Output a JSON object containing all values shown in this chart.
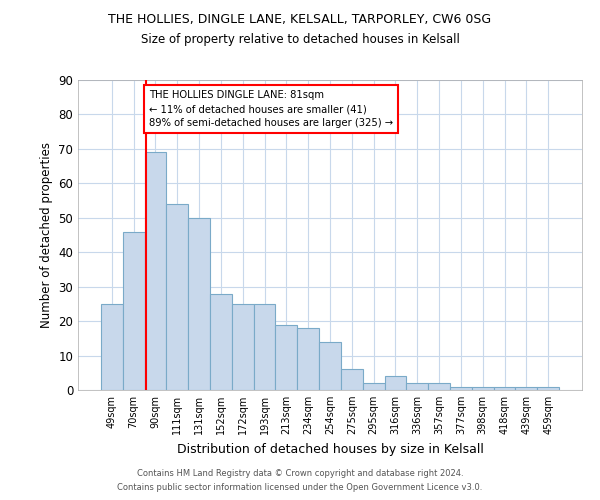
{
  "title1": "THE HOLLIES, DINGLE LANE, KELSALL, TARPORLEY, CW6 0SG",
  "title2": "Size of property relative to detached houses in Kelsall",
  "xlabel": "Distribution of detached houses by size in Kelsall",
  "ylabel": "Number of detached properties",
  "categories": [
    "49sqm",
    "70sqm",
    "90sqm",
    "111sqm",
    "131sqm",
    "152sqm",
    "172sqm",
    "193sqm",
    "213sqm",
    "234sqm",
    "254sqm",
    "275sqm",
    "295sqm",
    "316sqm",
    "336sqm",
    "357sqm",
    "377sqm",
    "398sqm",
    "418sqm",
    "439sqm",
    "459sqm"
  ],
  "values": [
    25,
    46,
    69,
    54,
    50,
    28,
    25,
    25,
    19,
    18,
    14,
    6,
    2,
    4,
    2,
    2,
    1,
    1,
    1,
    1,
    1
  ],
  "bar_color": "#c8d8eb",
  "bar_edge_color": "#7aaac8",
  "grid_color": "#c8d8eb",
  "vline_color": "red",
  "annotation_text": "THE HOLLIES DINGLE LANE: 81sqm\n← 11% of detached houses are smaller (41)\n89% of semi-detached houses are larger (325) →",
  "annotation_box_color": "white",
  "annotation_box_edge_color": "red",
  "footer1": "Contains HM Land Registry data © Crown copyright and database right 2024.",
  "footer2": "Contains public sector information licensed under the Open Government Licence v3.0.",
  "ylim": [
    0,
    90
  ],
  "yticks": [
    0,
    10,
    20,
    30,
    40,
    50,
    60,
    70,
    80,
    90
  ]
}
